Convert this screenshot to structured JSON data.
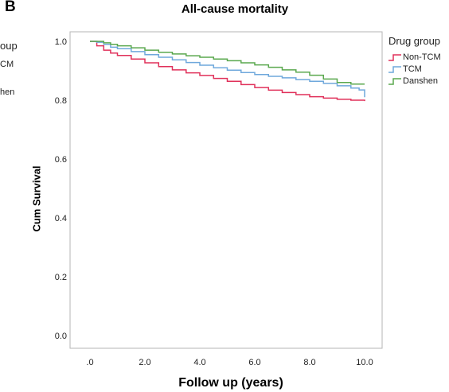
{
  "figure": {
    "panel_letter": "B",
    "left_panel_fragments": [
      "oup",
      "CM",
      "hen"
    ]
  },
  "chart_data": {
    "type": "line",
    "title": "All-cause mortality",
    "xlabel": "Follow up (years)",
    "ylabel": "Cum Survival",
    "xlim": [
      0,
      10
    ],
    "ylim": [
      0,
      1
    ],
    "x_ticks": [
      0,
      2,
      4,
      6,
      8,
      10
    ],
    "x_tick_labels": [
      ".0",
      "2.0",
      "4.0",
      "6.0",
      "8.0",
      "10.0"
    ],
    "y_ticks": [
      0,
      0.2,
      0.4,
      0.6,
      0.8,
      1.0
    ],
    "y_tick_labels": [
      "0.0",
      "0.2",
      "0.4",
      "0.6",
      "0.8",
      "1.0"
    ],
    "grid": false,
    "legend": {
      "title": "Drug group",
      "placement": "right"
    },
    "series": [
      {
        "name": "Non-TCM",
        "color": "#e0305a",
        "x": [
          0,
          0.25,
          0.5,
          0.75,
          1.0,
          1.5,
          2.0,
          2.5,
          3.0,
          3.5,
          4.0,
          4.5,
          5.0,
          5.5,
          6.0,
          6.5,
          7.0,
          7.5,
          8.0,
          8.5,
          9.0,
          9.5,
          10.0
        ],
        "y": [
          1.0,
          0.985,
          0.97,
          0.96,
          0.952,
          0.94,
          0.927,
          0.914,
          0.903,
          0.893,
          0.884,
          0.874,
          0.864,
          0.853,
          0.843,
          0.834,
          0.826,
          0.819,
          0.812,
          0.807,
          0.803,
          0.8,
          0.797
        ]
      },
      {
        "name": "TCM",
        "color": "#6fa8dc",
        "x": [
          0,
          0.25,
          0.5,
          0.75,
          1.0,
          1.5,
          2.0,
          2.5,
          3.0,
          3.5,
          4.0,
          4.5,
          5.0,
          5.5,
          6.0,
          6.5,
          7.0,
          7.5,
          8.0,
          8.5,
          9.0,
          9.5,
          9.8,
          10.0
        ],
        "y": [
          1.0,
          0.997,
          0.99,
          0.98,
          0.975,
          0.965,
          0.955,
          0.946,
          0.937,
          0.928,
          0.919,
          0.91,
          0.902,
          0.894,
          0.887,
          0.881,
          0.876,
          0.87,
          0.864,
          0.857,
          0.849,
          0.841,
          0.835,
          0.81
        ]
      },
      {
        "name": "Danshen",
        "color": "#5aa84e",
        "x": [
          0,
          0.25,
          0.5,
          0.75,
          1.0,
          1.5,
          2.0,
          2.5,
          3.0,
          3.5,
          4.0,
          4.5,
          5.0,
          5.5,
          6.0,
          6.5,
          7.0,
          7.5,
          8.0,
          8.5,
          9.0,
          9.5,
          10.0
        ],
        "y": [
          1.0,
          1.0,
          0.995,
          0.99,
          0.985,
          0.978,
          0.97,
          0.963,
          0.957,
          0.951,
          0.946,
          0.94,
          0.934,
          0.927,
          0.92,
          0.912,
          0.903,
          0.895,
          0.885,
          0.872,
          0.86,
          0.855,
          0.855
        ]
      }
    ]
  }
}
